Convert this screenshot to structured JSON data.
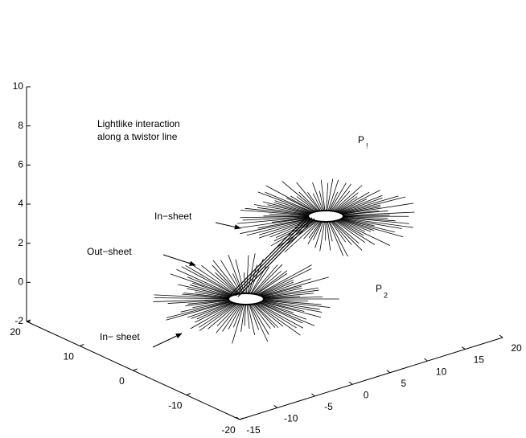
{
  "chart_data": {
    "type": "3d-bursts",
    "xlim": [
      -15,
      20
    ],
    "xticks": [
      -15,
      -10,
      -5,
      0,
      5,
      10,
      15,
      20
    ],
    "ylim": [
      -20,
      20
    ],
    "yticks": [
      20,
      10,
      0,
      -10,
      -20
    ],
    "zlim": [
      -2,
      10
    ],
    "zticks": [
      -2,
      0,
      2,
      4,
      6,
      8,
      10
    ],
    "annotations": [
      "Lightlike interaction",
      "along a twistor line",
      "In−sheet",
      "Out−sheet",
      "In− sheet"
    ],
    "points": [
      {
        "name": "P",
        "subscript": "!"
      },
      {
        "name": "P",
        "subscript": "2"
      }
    ],
    "color": "#000000"
  }
}
